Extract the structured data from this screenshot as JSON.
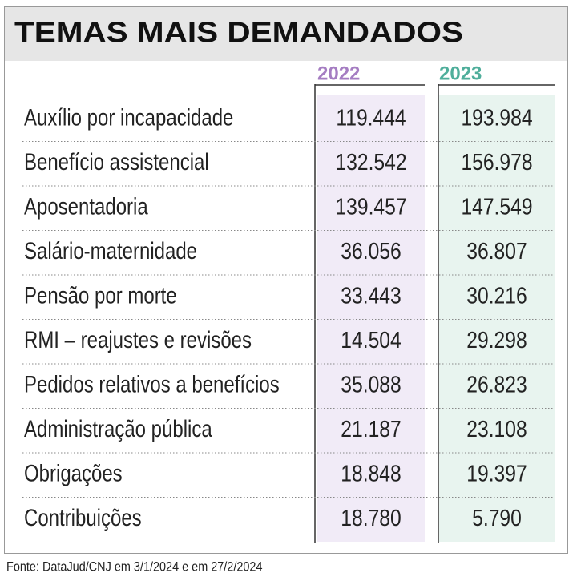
{
  "header": {
    "title": "TEMAS MAIS DEMANDADOS"
  },
  "table": {
    "columns": [
      "2022",
      "2023"
    ],
    "rows": [
      [
        "Auxílio por incapacidade",
        "119.444",
        "193.984"
      ],
      [
        "Benefício assistencial",
        "132.542",
        "156.978"
      ],
      [
        "Aposentadoria",
        "139.457",
        "147.549"
      ],
      [
        "Salário-maternidade",
        "36.056",
        "36.807"
      ],
      [
        "Pensão por morte",
        "33.443",
        "30.216"
      ],
      [
        "RMI – reajustes e revisões",
        "14.504",
        "29.298"
      ],
      [
        "Pedidos relativos a benefícios",
        "35.088",
        "26.823"
      ],
      [
        "Administração pública",
        "21.187",
        "23.108"
      ],
      [
        "Obrigações",
        "18.848",
        "19.397"
      ],
      [
        "Contribuições",
        "18.780",
        "5.790"
      ]
    ]
  },
  "footer": {
    "source": "Fonte: DataJud/CNJ em 3/1/2024 e em 27/2/2024"
  }
}
